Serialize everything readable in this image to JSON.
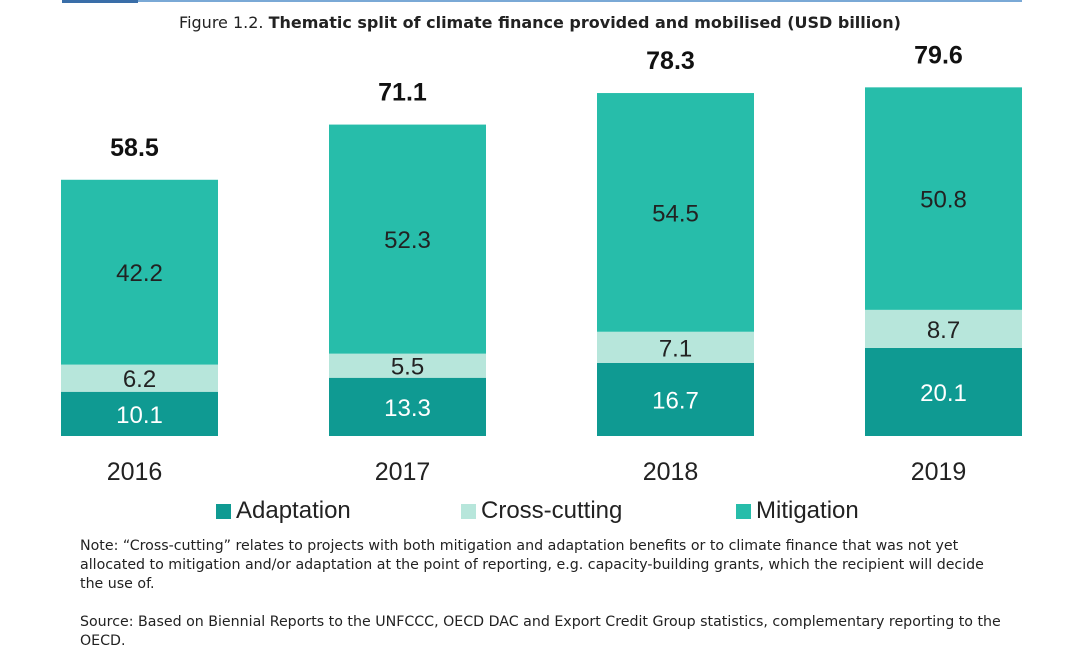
{
  "title": {
    "lead": "Figure 1.2.",
    "main": "Thematic split of climate finance provided and mobilised (USD billion)"
  },
  "chart_data": {
    "type": "bar",
    "stacked": true,
    "title": "Thematic split of climate finance provided and mobilised (USD billion)",
    "categories": [
      "2016",
      "2017",
      "2018",
      "2019"
    ],
    "series": [
      {
        "name": "Adaptation",
        "color": "#0f9a92",
        "values": [
          10.1,
          13.3,
          16.7,
          20.1
        ]
      },
      {
        "name": "Cross-cutting",
        "color": "#b7e6db",
        "values": [
          6.2,
          5.5,
          7.1,
          8.7
        ]
      },
      {
        "name": "Mitigation",
        "color": "#27bdaa",
        "values": [
          42.2,
          52.3,
          54.5,
          50.8
        ]
      }
    ],
    "totals": [
      58.5,
      71.1,
      78.3,
      79.6
    ],
    "ylim": [
      0,
      80
    ],
    "xlabel": "",
    "ylabel": "",
    "grid": false,
    "legend_position": "bottom"
  },
  "legend": {
    "items": [
      {
        "label": "Adaptation",
        "color": "#0f9a92"
      },
      {
        "label": "Cross-cutting",
        "color": "#b7e6db"
      },
      {
        "label": "Mitigation",
        "color": "#27bdaa"
      }
    ]
  },
  "notes": {
    "note": "Note: “Cross-cutting” relates to projects with both mitigation and adaptation benefits or to climate finance that was not yet allocated to mitigation and/or adaptation at the point of reporting, e.g. capacity-building grants, which the recipient will decide the use of.",
    "source": "Source: Based on Biennial Reports to the UNFCCC, OECD DAC and Export Credit Group statistics, complementary reporting to the OECD."
  }
}
